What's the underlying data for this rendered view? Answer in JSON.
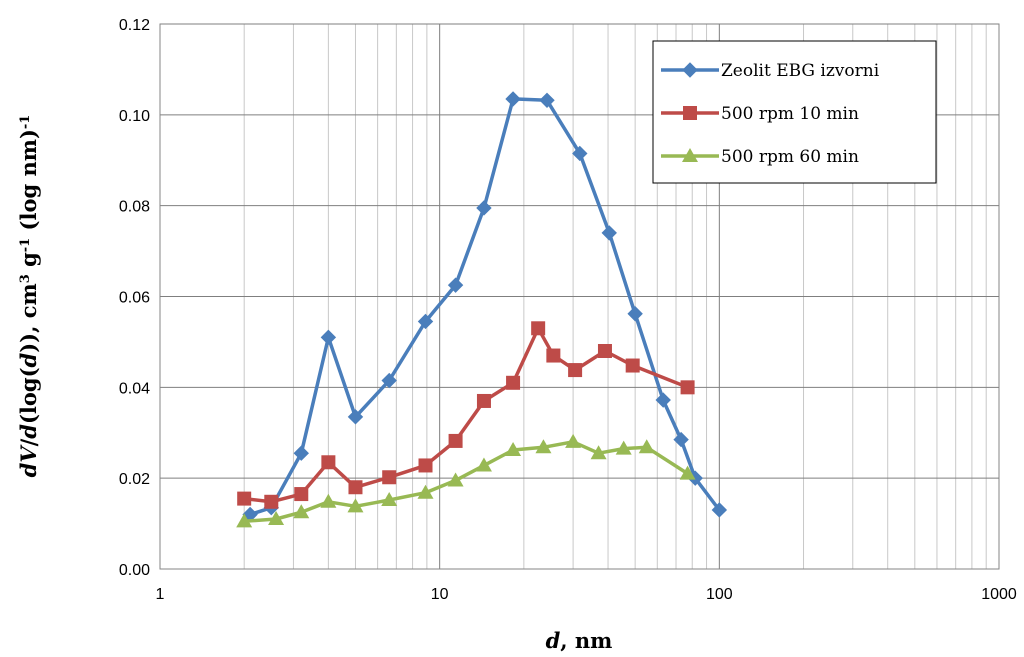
{
  "chart_data": {
    "type": "line",
    "x_scale": "log",
    "xlim": [
      1,
      1000
    ],
    "ylim": [
      0,
      0.12
    ],
    "grid": true,
    "legend_position": "top-right",
    "xlabel": {
      "italic": "d",
      "rest": ", nm"
    },
    "ylabel": {
      "italic1": "dV",
      "rest1": "/",
      "italic2": "d",
      "rest2": "(log(",
      "italic3": "d",
      "rest3": ")), cm",
      "sup1": "3",
      "rest4": " g",
      "sup2": "-1",
      "rest5": " (log nm)",
      "sup3": "-1"
    },
    "x_ticks": [
      "1",
      "10",
      "100",
      "1000"
    ],
    "y_ticks": [
      "0.00",
      "0.02",
      "0.04",
      "0.06",
      "0.08",
      "0.10",
      "0.12"
    ],
    "series": [
      {
        "name": "Zeolit EBG izvorni",
        "color": "#4a7ebb",
        "marker": "diamond",
        "x": [
          2.1,
          2.5,
          3.2,
          4.0,
          5.0,
          6.6,
          8.9,
          11.4,
          14.4,
          18.3,
          24.2,
          31.7,
          40.4,
          50.0,
          63.0,
          73.0,
          82.0,
          100.0
        ],
        "y": [
          0.012,
          0.0135,
          0.0255,
          0.051,
          0.0335,
          0.0415,
          0.0545,
          0.0625,
          0.0795,
          0.1035,
          0.1032,
          0.0915,
          0.074,
          0.0562,
          0.0372,
          0.0285,
          0.02,
          0.013
        ]
      },
      {
        "name": "500 rpm 10 min",
        "color": "#be4b48",
        "marker": "square",
        "x": [
          2.0,
          2.5,
          3.2,
          4.0,
          5.0,
          6.6,
          8.9,
          11.4,
          14.4,
          18.3,
          22.5,
          25.5,
          30.5,
          39.0,
          49.0,
          77.0
        ],
        "y": [
          0.0155,
          0.0148,
          0.0165,
          0.0235,
          0.018,
          0.0202,
          0.0228,
          0.0282,
          0.037,
          0.041,
          0.053,
          0.047,
          0.0438,
          0.048,
          0.0448,
          0.04
        ]
      },
      {
        "name": "500 rpm 60 min",
        "color": "#98b954",
        "marker": "triangle",
        "x": [
          2.0,
          2.6,
          3.2,
          4.0,
          5.0,
          6.6,
          8.9,
          11.4,
          14.4,
          18.3,
          23.5,
          30.0,
          37.0,
          45.5,
          55.0,
          77.0
        ],
        "y": [
          0.0105,
          0.011,
          0.0125,
          0.0148,
          0.0138,
          0.0152,
          0.0168,
          0.0195,
          0.0228,
          0.0262,
          0.0268,
          0.028,
          0.0255,
          0.0265,
          0.0268,
          0.021
        ]
      }
    ]
  }
}
